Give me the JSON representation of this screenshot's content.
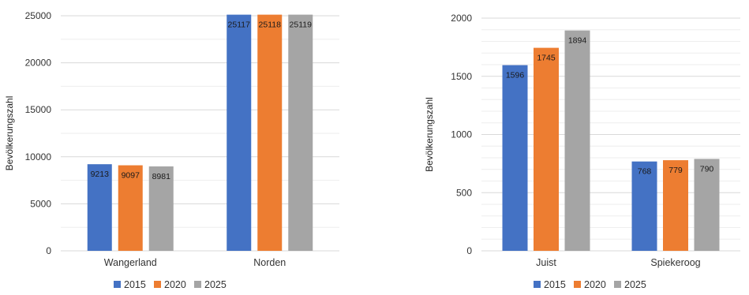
{
  "legend": [
    "2015",
    "2020",
    "2025"
  ],
  "colors": [
    "#4472C4",
    "#ED7D31",
    "#A5A5A5"
  ],
  "chart_data": [
    {
      "type": "bar",
      "ylabel": "Bevölkerungszahl",
      "categories": [
        "Wangerland",
        "Norden"
      ],
      "series": [
        {
          "name": "2015",
          "values": [
            9213,
            25117
          ]
        },
        {
          "name": "2020",
          "values": [
            9097,
            25118
          ]
        },
        {
          "name": "2025",
          "values": [
            8981,
            25119
          ]
        }
      ],
      "ylim": [
        0,
        25000
      ],
      "yticks": [
        0,
        5000,
        10000,
        15000,
        20000,
        25000
      ],
      "ytick_labels": [
        "0",
        "5000",
        "10000",
        "15000",
        "20000",
        "25000"
      ],
      "grid": true,
      "legend_position": "bottom"
    },
    {
      "type": "bar",
      "ylabel": "Bevölkerungszahl",
      "categories": [
        "Juist",
        "Spiekeroog"
      ],
      "series": [
        {
          "name": "2015",
          "values": [
            1596,
            768
          ]
        },
        {
          "name": "2020",
          "values": [
            1745,
            779
          ]
        },
        {
          "name": "2025",
          "values": [
            1894,
            790
          ]
        }
      ],
      "ylim": [
        0,
        2000
      ],
      "yticks": [
        0,
        500,
        1000,
        1500,
        2000
      ],
      "ytick_labels": [
        "0",
        "500",
        "1000",
        "1500",
        "2000"
      ],
      "grid": true,
      "legend_position": "bottom"
    }
  ]
}
